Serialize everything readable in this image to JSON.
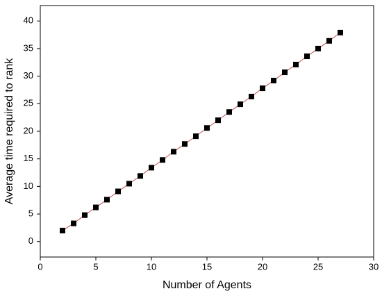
{
  "chart_data": {
    "type": "line",
    "x_label": "Number of Agents",
    "y_label": "Average time required to rank",
    "x": [
      2,
      3,
      4,
      5,
      6,
      7,
      8,
      9,
      10,
      11,
      12,
      13,
      14,
      15,
      16,
      17,
      18,
      19,
      20,
      21,
      22,
      23,
      24,
      25,
      26,
      27
    ],
    "values": [
      2,
      3.3,
      4.8,
      6.2,
      7.6,
      9.1,
      10.5,
      11.9,
      13.4,
      14.8,
      16.3,
      17.7,
      19.1,
      20.6,
      22,
      23.5,
      24.9,
      26.3,
      27.8,
      29.2,
      30.7,
      32.1,
      33.6,
      35,
      36.4,
      37.9
    ],
    "color": "#000000",
    "line_color": "#c0504d",
    "xlim": [
      0,
      30
    ],
    "xticks": [
      0,
      5,
      10,
      15,
      20,
      25,
      30
    ],
    "ylim": [
      -2.8,
      42.8
    ],
    "yticks": [
      0,
      5,
      10,
      15,
      20,
      25,
      30,
      35,
      40
    ],
    "grid": false
  }
}
